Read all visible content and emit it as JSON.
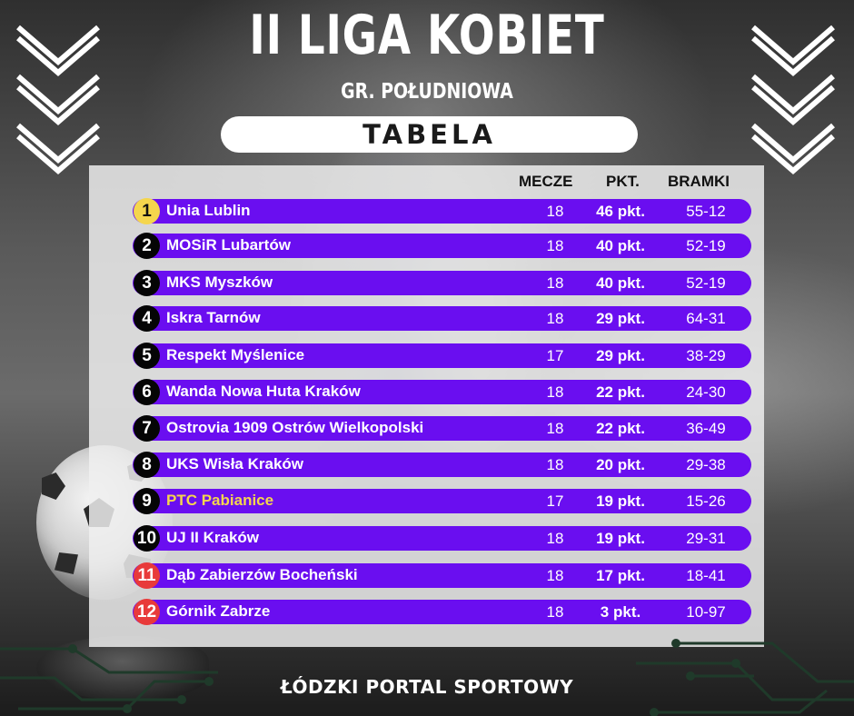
{
  "header": {
    "title": "II LIGA KOBIET",
    "subtitle": "GR. POŁUDNIOWA",
    "section": "TABELA"
  },
  "table": {
    "columns": [
      "MECZE",
      "PKT.",
      "BRAMKI"
    ],
    "rows": [
      {
        "rank": "1",
        "team": "Unia Lublin",
        "mecze": "18",
        "pkt": "46 pkt.",
        "bramki": "55-12"
      },
      {
        "rank": "2",
        "team": "MOSiR Lubartów",
        "mecze": "18",
        "pkt": "40 pkt.",
        "bramki": "52-19"
      },
      {
        "rank": "3",
        "team": "MKS Myszków",
        "mecze": "18",
        "pkt": "40 pkt.",
        "bramki": "52-19"
      },
      {
        "rank": "4",
        "team": "Iskra Tarnów",
        "mecze": "18",
        "pkt": "29 pkt.",
        "bramki": "64-31"
      },
      {
        "rank": "5",
        "team": "Respekt Myślenice",
        "mecze": "17",
        "pkt": "29 pkt.",
        "bramki": "38-29"
      },
      {
        "rank": "6",
        "team": "Wanda Nowa Huta Kraków",
        "mecze": "18",
        "pkt": "22 pkt.",
        "bramki": "24-30"
      },
      {
        "rank": "7",
        "team": "Ostrovia 1909 Ostrów Wielkopolski",
        "mecze": "18",
        "pkt": "22 pkt.",
        "bramki": "36-49"
      },
      {
        "rank": "8",
        "team": "UKS Wisła Kraków",
        "mecze": "18",
        "pkt": "20 pkt.",
        "bramki": "29-38"
      },
      {
        "rank": "9",
        "team": "PTC Pabianice",
        "mecze": "17",
        "pkt": "19 pkt.",
        "bramki": "15-26"
      },
      {
        "rank": "10",
        "team": "UJ II Kraków",
        "mecze": "18",
        "pkt": "19 pkt.",
        "bramki": "29-31"
      },
      {
        "rank": "11",
        "team": "Dąb Zabierzów Bocheński",
        "mecze": "18",
        "pkt": "17 pkt.",
        "bramki": "18-41"
      },
      {
        "rank": "12",
        "team": "Górnik Zabrze",
        "mecze": "18",
        "pkt": "3 pkt.",
        "bramki": "10-97"
      }
    ]
  },
  "footer": {
    "text": "ŁÓDZKI PORTAL SPORTOWY"
  },
  "colors": {
    "row_bar": "#6a0ef0",
    "rank_gold": "#f5d64d",
    "rank_red": "#e83a3a",
    "rank_black": "#050505",
    "highlight_team": "#f5d64d"
  },
  "icons": [
    "chevron-down-icon",
    "soccer-ball",
    "circuit-lines"
  ]
}
